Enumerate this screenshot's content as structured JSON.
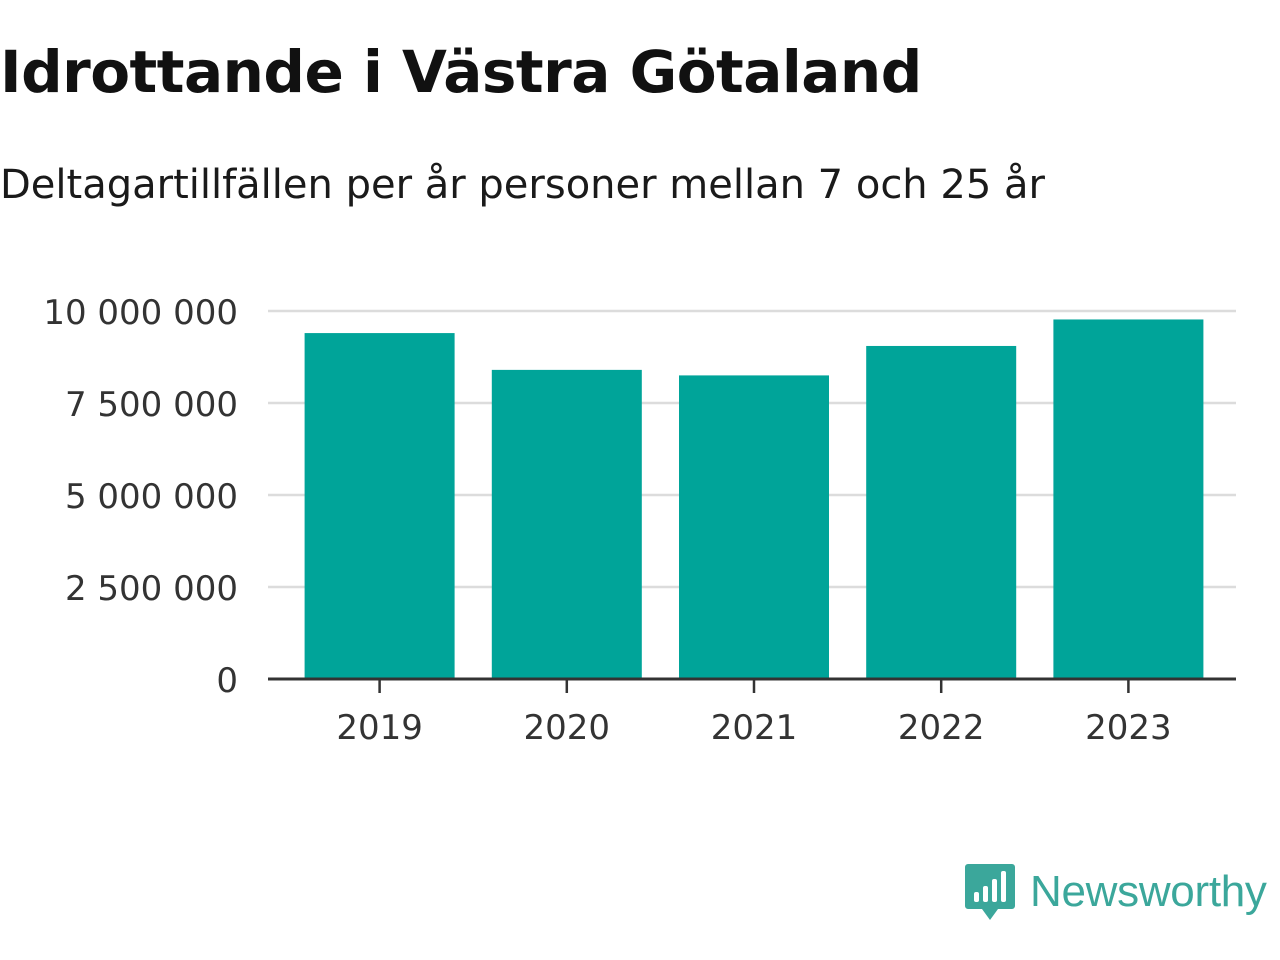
{
  "chart_data": {
    "type": "bar",
    "title": "Idrottande i Västra Götaland",
    "subtitle": "Deltagartillfällen per år personer mellan 7 och 25 år",
    "categories": [
      "2019",
      "2020",
      "2021",
      "2022",
      "2023"
    ],
    "values": [
      9400000,
      8400000,
      8250000,
      9050000,
      9770000
    ],
    "ylim": [
      0,
      10000000
    ],
    "yticks": [
      0,
      2500000,
      5000000,
      7500000,
      10000000
    ],
    "ytick_labels": [
      "0",
      "2 500 000",
      "5 000 000",
      "7 500 000",
      "10 000 000"
    ],
    "grid": true,
    "bar_color": "#00a499"
  },
  "brand": {
    "name": "Newsworthy",
    "color": "#3ba79b",
    "icon": "bar-chart-speech-bubble-icon"
  }
}
